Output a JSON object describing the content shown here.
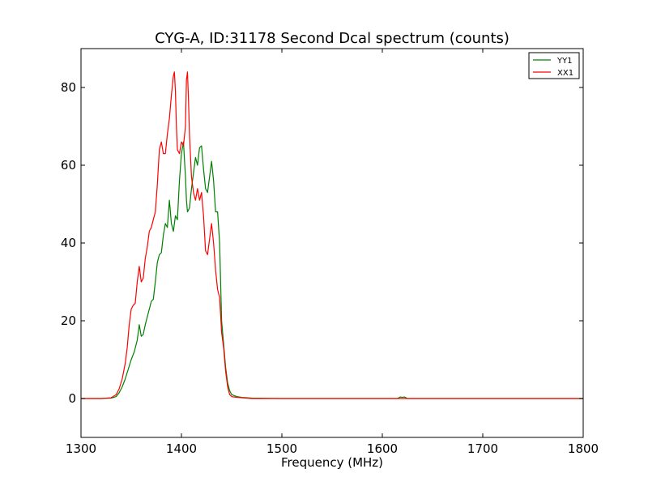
{
  "chart_data": {
    "type": "line",
    "title": "CYG-A, ID:31178 Second Dcal spectrum (counts)",
    "xlabel": "Frequency (MHz)",
    "ylabel": "",
    "xlim": [
      1300,
      1800
    ],
    "ylim": [
      -10,
      90
    ],
    "xticks": [
      1300,
      1400,
      1500,
      1600,
      1700,
      1800
    ],
    "yticks": [
      0,
      20,
      40,
      60,
      80
    ],
    "legend": "top-right",
    "grid": false,
    "series": [
      {
        "name": "YY1",
        "color": "#008000",
        "x": [
          1300,
          1320,
          1330,
          1335,
          1338,
          1341,
          1344,
          1347,
          1350,
          1353,
          1356,
          1358,
          1360,
          1362,
          1364,
          1366,
          1368,
          1370,
          1372,
          1374,
          1376,
          1378,
          1380,
          1382,
          1384,
          1386,
          1388,
          1390,
          1392,
          1394,
          1396,
          1398,
          1400,
          1402,
          1404,
          1405,
          1406,
          1408,
          1410,
          1412,
          1414,
          1416,
          1418,
          1420,
          1422,
          1424,
          1426,
          1428,
          1430,
          1432,
          1434,
          1436,
          1438,
          1440,
          1442,
          1444,
          1446,
          1448,
          1450,
          1455,
          1460,
          1470,
          1500,
          1550,
          1600,
          1615,
          1618,
          1620,
          1622,
          1625,
          1640,
          1650,
          1700,
          1800
        ],
        "y": [
          0,
          0,
          0.1,
          0.5,
          1.5,
          3,
          5,
          7.5,
          10,
          12,
          15,
          19,
          16,
          16.5,
          19,
          21,
          23,
          25,
          25.5,
          30,
          35,
          37,
          37.5,
          42,
          45,
          44,
          51,
          45,
          43,
          47,
          46,
          56,
          63,
          66,
          57,
          51,
          48,
          49,
          54,
          58,
          62,
          60,
          64.5,
          65,
          59,
          54,
          53,
          57,
          61,
          56,
          48,
          48,
          40,
          20,
          14,
          8,
          4,
          2,
          1,
          0.5,
          0.3,
          0.1,
          0,
          0,
          0,
          0,
          0.4,
          0.3,
          0.4,
          0,
          0,
          0,
          0,
          0
        ]
      },
      {
        "name": "XX1",
        "color": "#ff0000",
        "x": [
          1300,
          1320,
          1330,
          1335,
          1338,
          1341,
          1344,
          1346,
          1348,
          1350,
          1352,
          1354,
          1356,
          1358,
          1360,
          1362,
          1364,
          1366,
          1368,
          1370,
          1372,
          1374,
          1376,
          1378,
          1380,
          1382,
          1384,
          1386,
          1388,
          1390,
          1392,
          1393,
          1394,
          1395,
          1396,
          1398,
          1400,
          1402,
          1404,
          1405,
          1406,
          1407,
          1408,
          1410,
          1412,
          1414,
          1416,
          1418,
          1420,
          1422,
          1424,
          1426,
          1428,
          1430,
          1432,
          1434,
          1436,
          1438,
          1440,
          1442,
          1444,
          1446,
          1448,
          1450,
          1455,
          1460,
          1470,
          1500,
          1550,
          1600,
          1620,
          1640,
          1645,
          1650,
          1700,
          1800
        ],
        "y": [
          0,
          0,
          0.2,
          1,
          2.5,
          5,
          9,
          13,
          19,
          23,
          24,
          24.5,
          30,
          34,
          30,
          31,
          36,
          39,
          43,
          44,
          46,
          48,
          55,
          64,
          66,
          63,
          63,
          68,
          72,
          78,
          83,
          84,
          79,
          70,
          64,
          63,
          66,
          65,
          70,
          82,
          84,
          77,
          68,
          57,
          53,
          51,
          54,
          51,
          53,
          47,
          38,
          37,
          41,
          45,
          40,
          33,
          28,
          26,
          17,
          13,
          7,
          3,
          1,
          0.5,
          0.3,
          0.2,
          0,
          0,
          0,
          0,
          0,
          0,
          0,
          0,
          0,
          0
        ]
      }
    ]
  }
}
